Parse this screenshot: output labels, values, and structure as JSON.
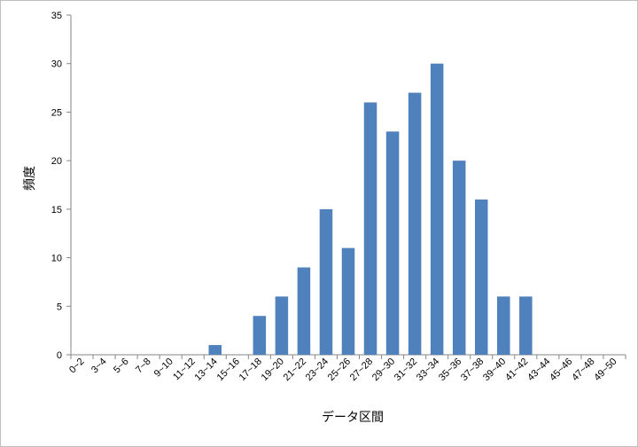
{
  "chart_data": {
    "type": "bar",
    "xlabel": "データ区間",
    "ylabel": "頻度",
    "ylim": [
      0,
      35
    ],
    "yticks": [
      0,
      5,
      10,
      15,
      20,
      25,
      30,
      35
    ],
    "grid": false,
    "legend": "none",
    "bar_color": "#4f81bd",
    "categories": [
      "0~2",
      "3~4",
      "5~6",
      "7~8",
      "9~10",
      "11~12",
      "13~14",
      "15~16",
      "17~18",
      "19~20",
      "21~22",
      "23~24",
      "25~26",
      "27~28",
      "29~30",
      "31~32",
      "33~34",
      "35~36",
      "37~38",
      "39~40",
      "41~42",
      "43~44",
      "45~46",
      "47~48",
      "49~50"
    ],
    "values": [
      0,
      0,
      0,
      0,
      0,
      0,
      1,
      0,
      4,
      6,
      9,
      15,
      11,
      26,
      23,
      27,
      30,
      20,
      16,
      6,
      6,
      0,
      0,
      0,
      0
    ]
  }
}
